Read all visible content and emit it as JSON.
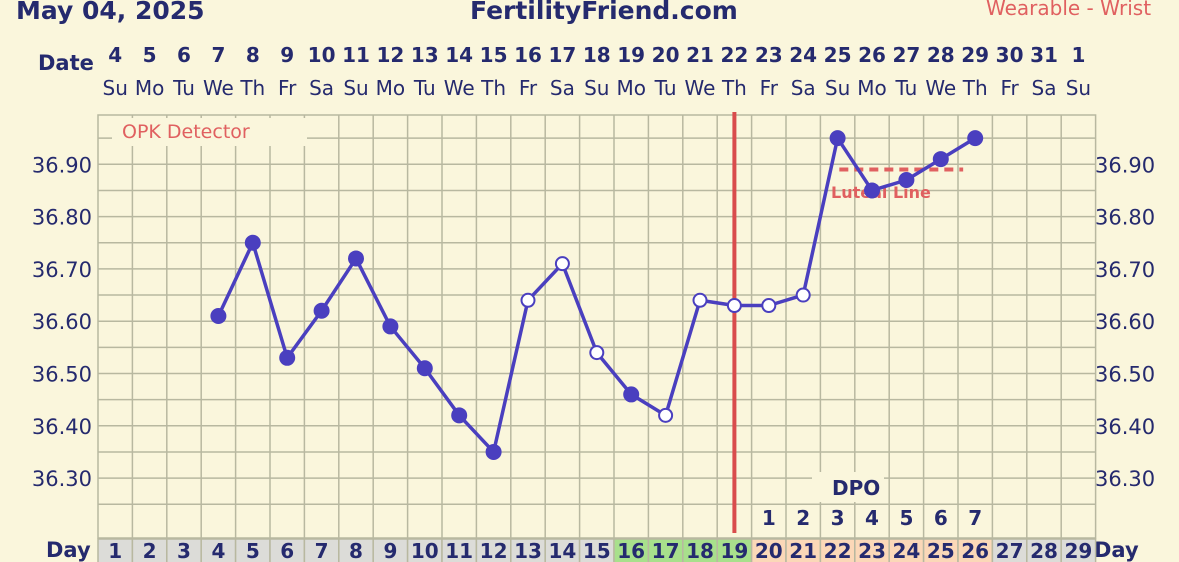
{
  "header": {
    "date": "May 04, 2025",
    "site": "FertilityFriend.com",
    "method": "Wearable - Wrist"
  },
  "legend": {
    "opk": "OPK Detector"
  },
  "labels": {
    "date_row": "Date",
    "day_row": "Day",
    "dpo": "DPO",
    "luteal": "Luteal Line"
  },
  "colors": {
    "line": "#4a3fbf",
    "coverline": "#e06060",
    "ovulation": "#d94c4c",
    "grid": "#b8b8a0",
    "bg": "#faf6dc",
    "text": "#252a6e",
    "day_cell": "#dcdcd8",
    "fertile_cell": "#a8e08c",
    "luteal_cell": "#fbd8b8"
  },
  "chart_data": {
    "type": "line",
    "title": "",
    "xlabel": "Day",
    "ylabel": "",
    "ylim": [
      36.22,
      36.99
    ],
    "yticks": [
      "36.90",
      "36.80",
      "36.70",
      "36.60",
      "36.50",
      "36.40",
      "36.30"
    ],
    "ytick_values": [
      36.9,
      36.8,
      36.7,
      36.6,
      36.5,
      36.4,
      36.3
    ],
    "dates": [
      "4",
      "5",
      "6",
      "7",
      "8",
      "9",
      "10",
      "11",
      "12",
      "13",
      "14",
      "15",
      "16",
      "17",
      "18",
      "19",
      "20",
      "21",
      "22",
      "23",
      "24",
      "25",
      "26",
      "27",
      "28",
      "29",
      "30",
      "31",
      "1"
    ],
    "weekdays": [
      "Su",
      "Mo",
      "Tu",
      "We",
      "Th",
      "Fr",
      "Sa",
      "Su",
      "Mo",
      "Tu",
      "We",
      "Th",
      "Fr",
      "Sa",
      "Su",
      "Mo",
      "Tu",
      "We",
      "Th",
      "Fr",
      "Sa",
      "Su",
      "Mo",
      "Tu",
      "We",
      "Th",
      "Fr",
      "Sa",
      "Su"
    ],
    "days": [
      "1",
      "2",
      "3",
      "4",
      "5",
      "6",
      "7",
      "8",
      "9",
      "10",
      "11",
      "12",
      "13",
      "14",
      "15",
      "16",
      "17",
      "18",
      "19",
      "20",
      "21",
      "22",
      "23",
      "24",
      "25",
      "26",
      "27",
      "28",
      "29"
    ],
    "fertile_days": [
      16,
      17,
      18,
      19
    ],
    "luteal_days": [
      20,
      21,
      22,
      23,
      24,
      25,
      26
    ],
    "dpo": [
      {
        "day": 20,
        "label": "1"
      },
      {
        "day": 21,
        "label": "2"
      },
      {
        "day": 22,
        "label": "3"
      },
      {
        "day": 23,
        "label": "4"
      },
      {
        "day": 24,
        "label": "5"
      },
      {
        "day": 25,
        "label": "6"
      },
      {
        "day": 26,
        "label": "7"
      }
    ],
    "ovulation_day": 19,
    "coverline": {
      "value": 36.89,
      "from_day": 23,
      "to_day": 26
    },
    "series": [
      {
        "points": [
          {
            "day": 4,
            "temp": 36.61,
            "filled": true
          },
          {
            "day": 5,
            "temp": 36.75,
            "filled": true
          },
          {
            "day": 6,
            "temp": 36.53,
            "filled": true
          },
          {
            "day": 7,
            "temp": 36.62,
            "filled": true
          },
          {
            "day": 8,
            "temp": 36.72,
            "filled": true
          },
          {
            "day": 9,
            "temp": 36.59,
            "filled": true
          },
          {
            "day": 10,
            "temp": 36.51,
            "filled": true
          },
          {
            "day": 11,
            "temp": 36.42,
            "filled": true
          },
          {
            "day": 12,
            "temp": 36.35,
            "filled": true
          },
          {
            "day": 13,
            "temp": 36.64,
            "filled": false
          },
          {
            "day": 14,
            "temp": 36.71,
            "filled": false
          },
          {
            "day": 15,
            "temp": 36.54,
            "filled": false
          },
          {
            "day": 16,
            "temp": 36.46,
            "filled": true
          },
          {
            "day": 17,
            "temp": 36.42,
            "filled": false
          },
          {
            "day": 18,
            "temp": 36.64,
            "filled": false
          },
          {
            "day": 19,
            "temp": 36.63,
            "filled": false
          },
          {
            "day": 20,
            "temp": 36.63,
            "filled": false
          },
          {
            "day": 21,
            "temp": 36.65,
            "filled": false
          },
          {
            "day": 22,
            "temp": 36.95,
            "filled": true
          },
          {
            "day": 23,
            "temp": 36.85,
            "filled": true
          },
          {
            "day": 24,
            "temp": 36.87,
            "filled": true
          },
          {
            "day": 25,
            "temp": 36.91,
            "filled": true
          },
          {
            "day": 26,
            "temp": 36.95,
            "filled": true
          }
        ]
      }
    ]
  }
}
